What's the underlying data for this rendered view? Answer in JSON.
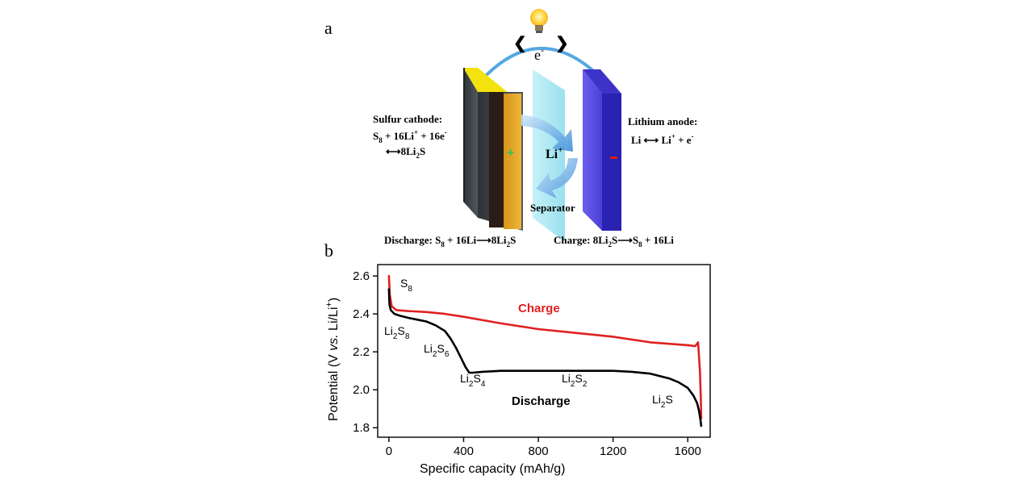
{
  "panel_a": {
    "label": "a",
    "electron_label": "e",
    "electron_sup": "-",
    "arrow_left": "❮",
    "arrow_right": "❯",
    "cathode": {
      "title": "Sulfur cathode:",
      "eq_line1": {
        "p1": "S",
        "p1_sub": "8",
        "p2": " + 16Li",
        "p2_sup": "+",
        "p3": " + 16e",
        "p3_sup": "-"
      },
      "eq_line2": {
        "arrow": "⟷",
        "p1": "8Li",
        "p1_sub": "2",
        "p2": "S"
      },
      "plus_sign": "+"
    },
    "anode": {
      "title": "Lithium anode:",
      "eq": {
        "p1": "Li ",
        "arrow": "⟷",
        "p2": " Li",
        "p2_sup": "+",
        "p3": " + e",
        "p3_sup": "-"
      },
      "minus_sign": "−"
    },
    "ion": {
      "text": "Li",
      "sup": "+"
    },
    "separator_label": "Separator",
    "discharge_eq": {
      "p1": "Discharge: S",
      "p1_sub": "8",
      "p2": " + 16Li",
      "arrow": "⟶",
      "p3": "8Li",
      "p3_sub": "2",
      "p4": "S"
    },
    "charge_eq": {
      "p1": "Charge: 8Li",
      "p1_sub": "2",
      "p2": "S",
      "arrow": "⟶",
      "p3": "S",
      "p3_sub": "8",
      "p4": " + 16Li"
    },
    "colors": {
      "cathode_face": "#e8a623",
      "cathode_top": "#f3e20d",
      "cathode_side": "#3a3f44",
      "anode": "#5b4fe0",
      "anode_side": "#2a22b0",
      "separator": "#a6e6f2",
      "wire": "#55a8e0"
    }
  },
  "panel_b": {
    "label": "b",
    "annotations": {
      "s8": {
        "main": "S",
        "sub": "8"
      },
      "li2s8": {
        "main": "Li",
        "sub1": "2",
        "mid": "S",
        "sub2": "8"
      },
      "li2s6": {
        "main": "Li",
        "sub1": "2",
        "mid": "S",
        "sub2": "6"
      },
      "li2s4": {
        "main": "Li",
        "sub1": "2",
        "mid": "S",
        "sub2": "4"
      },
      "li2s2": {
        "main": "Li",
        "sub1": "2",
        "mid": "S",
        "sub2": "2"
      },
      "li2s": {
        "main": "Li",
        "sub1": "2",
        "mid": "S"
      },
      "charge_label": "Charge",
      "discharge_label": "Discharge"
    }
  },
  "chart_data": {
    "type": "line",
    "xlabel": "Specific capacity (mAh/g)",
    "ylabel": {
      "p1": "Potential (V ",
      "italic": "vs.",
      "p2": " Li/Li",
      "sup": "+",
      "p3": ")"
    },
    "xlim": [
      -60,
      1720
    ],
    "ylim": [
      1.75,
      2.66
    ],
    "xticks": [
      0,
      400,
      800,
      1200,
      1600
    ],
    "xtick_labels": [
      "0",
      "400",
      "800",
      "1200",
      "1600"
    ],
    "yticks": [
      1.8,
      2.0,
      2.2,
      2.4,
      2.6
    ],
    "ytick_labels": [
      "1.8",
      "2.0",
      "2.2",
      "2.4",
      "2.6"
    ],
    "grid": false,
    "series": [
      {
        "name": "Charge",
        "color": "#e02020",
        "x": [
          0,
          5,
          15,
          40,
          100,
          200,
          300,
          400,
          600,
          800,
          1000,
          1200,
          1400,
          1600,
          1640,
          1655,
          1665,
          1670,
          1672
        ],
        "y": [
          2.6,
          2.5,
          2.44,
          2.42,
          2.415,
          2.41,
          2.4,
          2.385,
          2.35,
          2.32,
          2.3,
          2.28,
          2.25,
          2.235,
          2.23,
          2.25,
          2.1,
          1.95,
          1.85
        ]
      },
      {
        "name": "Discharge",
        "color": "#000000",
        "x": [
          0,
          3,
          10,
          30,
          60,
          100,
          150,
          200,
          250,
          300,
          330,
          360,
          390,
          410,
          430,
          450,
          500,
          600,
          800,
          1000,
          1200,
          1300,
          1400,
          1500,
          1550,
          1600,
          1630,
          1650,
          1660,
          1668,
          1672
        ],
        "y": [
          2.53,
          2.45,
          2.42,
          2.4,
          2.39,
          2.38,
          2.37,
          2.36,
          2.34,
          2.31,
          2.27,
          2.22,
          2.16,
          2.12,
          2.09,
          2.09,
          2.095,
          2.1,
          2.1,
          2.1,
          2.1,
          2.095,
          2.085,
          2.06,
          2.04,
          2.01,
          1.97,
          1.93,
          1.89,
          1.84,
          1.81
        ]
      }
    ]
  }
}
